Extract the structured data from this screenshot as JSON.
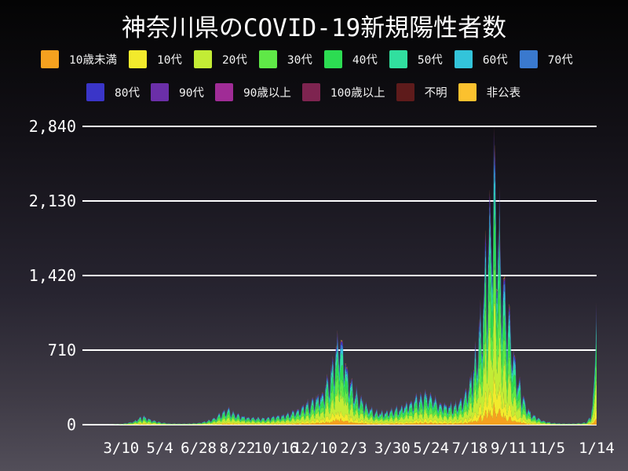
{
  "title": "神奈川県のCOVID-19新規陽性者数",
  "theme": {
    "background_top": "#040404",
    "background_bottom": "#524e59",
    "gridline_color": "#ffffff",
    "text_color": "#ffffff"
  },
  "legend": {
    "row_split": 8
  },
  "chart_data": {
    "type": "area",
    "stacked": true,
    "title": "神奈川県のCOVID-19新規陽性者数",
    "xlabel": "",
    "ylabel": "",
    "ylim": [
      0,
      2840
    ],
    "grid": "horizontal",
    "y_ticks": [
      {
        "label": "0",
        "value": 0
      },
      {
        "label": "710",
        "value": 710
      },
      {
        "label": "1,420",
        "value": 1420
      },
      {
        "label": "2,130",
        "value": 2130
      },
      {
        "label": "2,840",
        "value": 2840
      }
    ],
    "x_ticks": [
      {
        "label": "3/10",
        "day": 55
      },
      {
        "label": "5/4",
        "day": 110
      },
      {
        "label": "6/28",
        "day": 165
      },
      {
        "label": "8/22",
        "day": 220
      },
      {
        "label": "10/16",
        "day": 275
      },
      {
        "label": "12/10",
        "day": 330
      },
      {
        "label": "2/3",
        "day": 385
      },
      {
        "label": "3/30",
        "day": 440
      },
      {
        "label": "5/24",
        "day": 495
      },
      {
        "label": "7/18",
        "day": 550
      },
      {
        "label": "9/11",
        "day": 605
      },
      {
        "label": "11/5",
        "day": 660
      },
      {
        "label": "1/14",
        "day": 730
      }
    ],
    "x_range_days": [
      0,
      730
    ],
    "age_groups": [
      {
        "name": "10歳未満",
        "color": "#F5A11F",
        "share": 0.06
      },
      {
        "name": "10代",
        "color": "#F2EA2C",
        "share": 0.1
      },
      {
        "name": "20代",
        "color": "#C3EC35",
        "share": 0.24
      },
      {
        "name": "30代",
        "color": "#5FE847",
        "share": 0.17
      },
      {
        "name": "40代",
        "color": "#2CDC52",
        "share": 0.16
      },
      {
        "name": "50代",
        "color": "#31DF9F",
        "share": 0.11
      },
      {
        "name": "60代",
        "color": "#33C4DA",
        "share": 0.06
      },
      {
        "name": "70代",
        "color": "#3A79CE",
        "share": 0.045
      },
      {
        "name": "80代",
        "color": "#3A35C8",
        "share": 0.028
      },
      {
        "name": "90代",
        "color": "#6B2FA8",
        "share": 0.012
      },
      {
        "name": "90歳以上",
        "color": "#A02C96",
        "share": 0.005
      },
      {
        "name": "100歳以上",
        "color": "#7E2450",
        "share": 0.002
      },
      {
        "name": "不明",
        "color": "#5E1B1B",
        "share": 0.002
      },
      {
        "name": "非公表",
        "color": "#FBC12E",
        "share": 0.006
      }
    ],
    "daily_total_envelope": [
      [
        0,
        0
      ],
      [
        40,
        3
      ],
      [
        55,
        8
      ],
      [
        70,
        30
      ],
      [
        87,
        95
      ],
      [
        95,
        62
      ],
      [
        110,
        30
      ],
      [
        125,
        12
      ],
      [
        150,
        13
      ],
      [
        165,
        22
      ],
      [
        177,
        42
      ],
      [
        190,
        85
      ],
      [
        199,
        140
      ],
      [
        206,
        172
      ],
      [
        213,
        150
      ],
      [
        220,
        115
      ],
      [
        235,
        85
      ],
      [
        250,
        76
      ],
      [
        265,
        82
      ],
      [
        275,
        92
      ],
      [
        290,
        118
      ],
      [
        310,
        190
      ],
      [
        330,
        285
      ],
      [
        340,
        365
      ],
      [
        351,
        565
      ],
      [
        358,
        770
      ],
      [
        364,
        995
      ],
      [
        371,
        790
      ],
      [
        378,
        565
      ],
      [
        385,
        430
      ],
      [
        395,
        295
      ],
      [
        405,
        205
      ],
      [
        415,
        155
      ],
      [
        425,
        140
      ],
      [
        432,
        150
      ],
      [
        440,
        168
      ],
      [
        450,
        195
      ],
      [
        460,
        235
      ],
      [
        472,
        290
      ],
      [
        483,
        340
      ],
      [
        490,
        350
      ],
      [
        495,
        332
      ],
      [
        505,
        272
      ],
      [
        512,
        238
      ],
      [
        520,
        215
      ],
      [
        530,
        228
      ],
      [
        540,
        295
      ],
      [
        550,
        475
      ],
      [
        557,
        710
      ],
      [
        563,
        1090
      ],
      [
        568,
        1460
      ],
      [
        573,
        1860
      ],
      [
        578,
        2310
      ],
      [
        582,
        2660
      ],
      [
        584,
        2840
      ],
      [
        587,
        2610
      ],
      [
        591,
        2360
      ],
      [
        596,
        1960
      ],
      [
        600,
        1610
      ],
      [
        605,
        1260
      ],
      [
        610,
        960
      ],
      [
        615,
        705
      ],
      [
        619,
        525
      ],
      [
        625,
        355
      ],
      [
        630,
        232
      ],
      [
        634,
        162
      ],
      [
        640,
        112
      ],
      [
        649,
        66
      ],
      [
        655,
        46
      ],
      [
        660,
        33
      ],
      [
        668,
        21
      ],
      [
        680,
        14
      ],
      [
        690,
        12
      ],
      [
        700,
        14
      ],
      [
        710,
        20
      ],
      [
        716,
        33
      ],
      [
        721,
        95
      ],
      [
        724,
        230
      ],
      [
        726,
        390
      ],
      [
        728,
        660
      ],
      [
        730,
        1160
      ]
    ],
    "peak_day": 584,
    "peak_value": 2840,
    "last_day_value": 1160
  }
}
